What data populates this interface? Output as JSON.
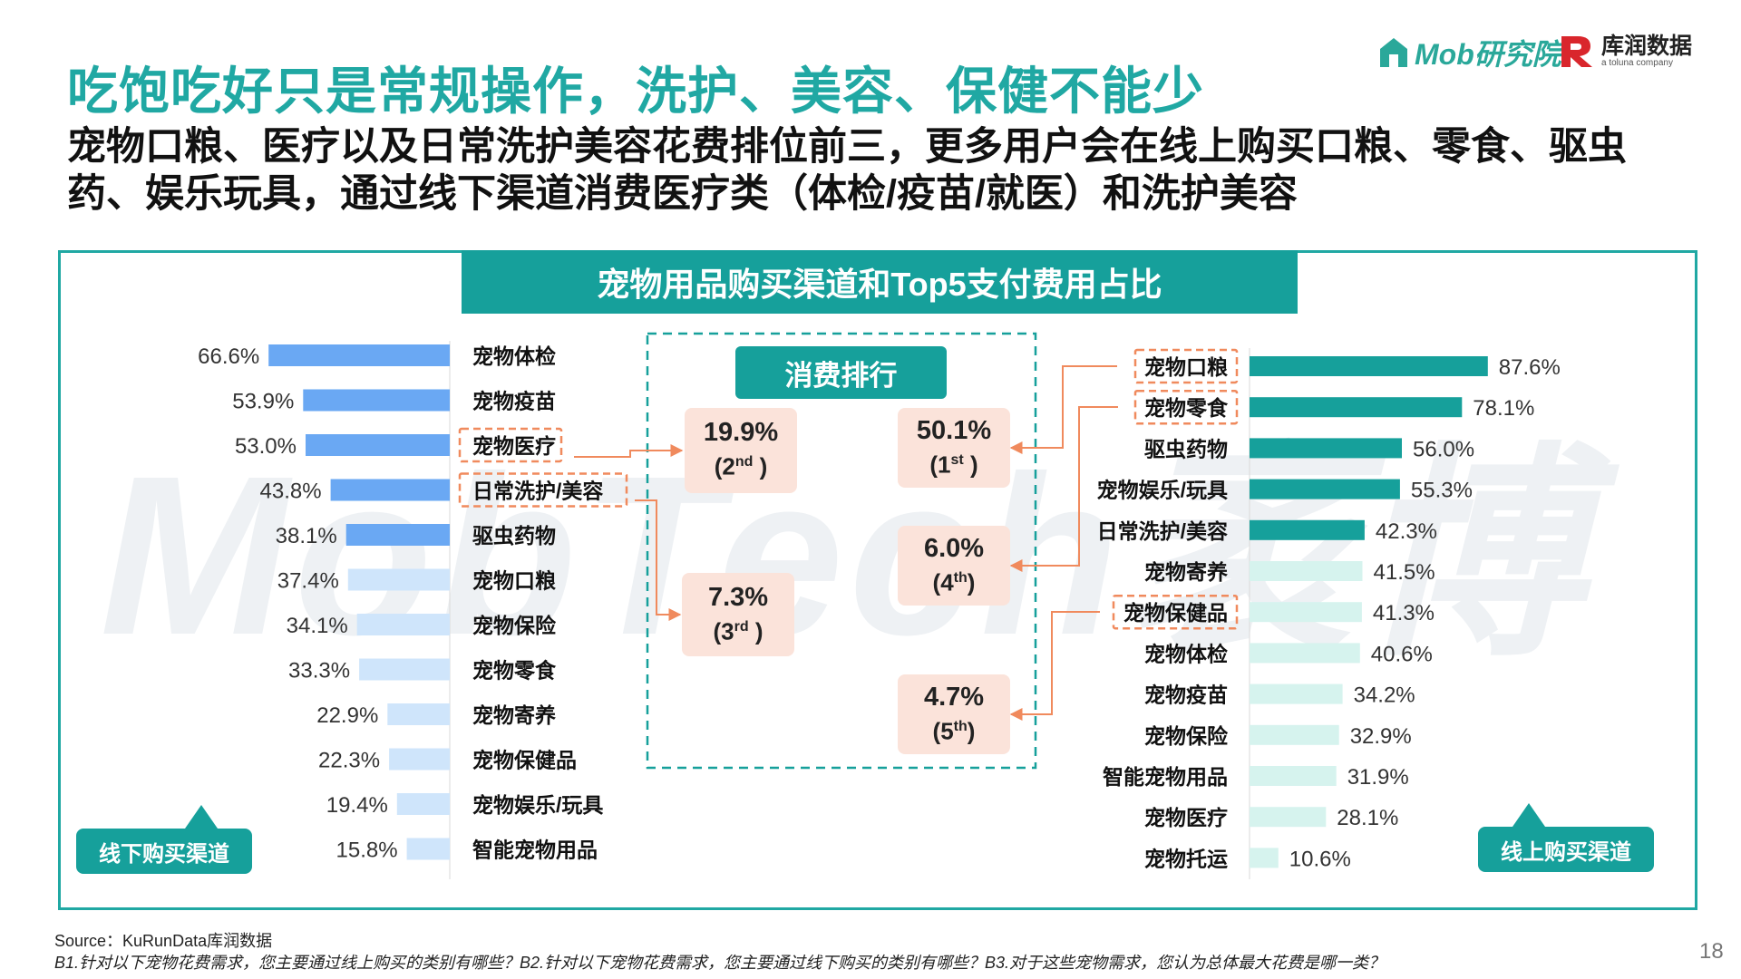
{
  "header": {
    "title": "吃饱吃好只是常规操作，洗护、美容、保健不能少",
    "subtitle": "宠物口粮、医疗以及日常洗护美容花费排位前三，更多用户会在线上购买口粮、零食、驱虫药、娱乐玩具，通过线下渠道消费医疗类（体检/疫苗/就医）和洗护美容",
    "logo_mob": "Mob研究院",
    "logo_kurun": "库润数据",
    "logo_kurun_sub": "a toluna company"
  },
  "watermark": "MobTech袤博",
  "panel_title": "宠物用品购买渠道和Top5支付费用占比",
  "offline_tag": "线下购买渠道",
  "online_tag": "线上购买渠道",
  "ranking": {
    "title": "消费排行",
    "items": [
      {
        "value": "50.1%",
        "ord": "1",
        "sup": "st",
        "category": "宠物口粮"
      },
      {
        "value": "19.9%",
        "ord": "2",
        "sup": "nd",
        "category": "宠物医疗"
      },
      {
        "value": "7.3%",
        "ord": "3",
        "sup": "rd",
        "category": "日常洗护/美容"
      },
      {
        "value": "6.0%",
        "ord": "4",
        "sup": "th",
        "category": "宠物零食"
      },
      {
        "value": "4.7%",
        "ord": "5",
        "sup": "th",
        "category": "宠物保健品"
      }
    ]
  },
  "colors": {
    "teal": "#16a09b",
    "title_teal": "#20a8a3",
    "offline_dark": "#6aa8f3",
    "offline_light": "#cfe5fb",
    "online_dark": "#16a09b",
    "online_light": "#d6f3ee",
    "highlight": "#f08a5d",
    "rank_bg": "#fbe3da"
  },
  "chart_data": [
    {
      "type": "bar",
      "orientation": "horizontal",
      "name": "线下购买渠道",
      "categories": [
        "宠物体检",
        "宠物疫苗",
        "宠物医疗",
        "日常洗护/美容",
        "驱虫药物",
        "宠物口粮",
        "宠物保险",
        "宠物零食",
        "宠物寄养",
        "宠物保健品",
        "宠物娱乐/玩具",
        "智能宠物用品"
      ],
      "values": [
        66.6,
        53.9,
        53.0,
        43.8,
        38.1,
        37.4,
        34.1,
        33.3,
        22.9,
        22.3,
        19.4,
        15.8
      ],
      "labels": [
        "66.6%",
        "53.9%",
        "53.0%",
        "43.8%",
        "38.1%",
        "37.4%",
        "34.1%",
        "33.3%",
        "22.9%",
        "22.3%",
        "19.4%",
        "15.8%"
      ],
      "highlight_count": 5,
      "highlighted_categories": [
        "宠物医疗",
        "日常洗护/美容"
      ]
    },
    {
      "type": "bar",
      "orientation": "horizontal",
      "name": "线上购买渠道",
      "categories": [
        "宠物口粮",
        "宠物零食",
        "驱虫药物",
        "宠物娱乐/玩具",
        "日常洗护/美容",
        "宠物寄养",
        "宠物保健品",
        "宠物体检",
        "宠物疫苗",
        "宠物保险",
        "智能宠物用品",
        "宠物医疗",
        "宠物托运"
      ],
      "values": [
        87.6,
        78.1,
        56.0,
        55.3,
        42.3,
        41.5,
        41.3,
        40.6,
        34.2,
        32.9,
        31.9,
        28.1,
        10.6
      ],
      "labels": [
        "87.6%",
        "78.1%",
        "56.0%",
        "55.3%",
        "42.3%",
        "41.5%",
        "41.3%",
        "40.6%",
        "34.2%",
        "32.9%",
        "31.9%",
        "28.1%",
        "10.6%"
      ],
      "highlight_count": 5,
      "highlighted_categories": [
        "宠物口粮",
        "宠物零食",
        "宠物保健品"
      ]
    }
  ],
  "footer": {
    "source": "Source：KuRunData库润数据",
    "note": "B1.针对以下宠物花费需求，您主要通过线上购买的类别有哪些？B2.针对以下宠物花费需求，您主要通过线下购买的类别有哪些？B3.对于这些宠物需求，您认为总体最大花费是哪一类？",
    "page": "18"
  }
}
